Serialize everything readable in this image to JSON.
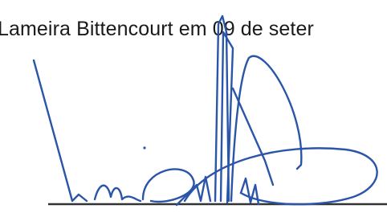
{
  "document": {
    "line_text": "Lameira Bittencourt em 09 de seter"
  }
}
